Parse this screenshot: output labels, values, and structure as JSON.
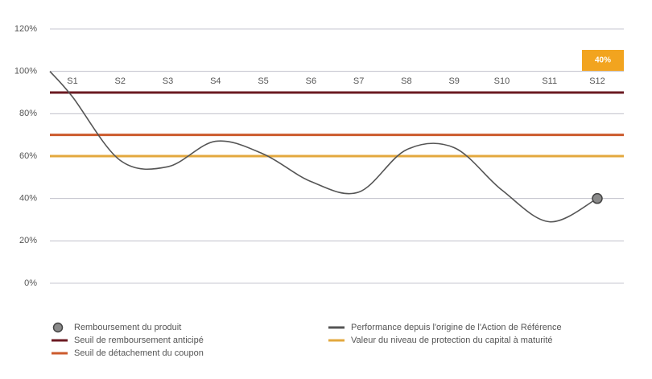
{
  "chart_data": {
    "type": "line",
    "categories": [
      null,
      "S1",
      "S2",
      "S3",
      "S4",
      "S5",
      "S6",
      "S7",
      "S8",
      "S9",
      "S10",
      "S11",
      "S12"
    ],
    "series": [
      {
        "name": "Performance depuis l'origine de l'Action de Référence",
        "type": "line",
        "color": "#555555",
        "values": [
          100,
          88,
          58,
          55,
          67,
          61,
          48,
          43,
          63,
          64,
          44,
          29,
          40
        ]
      },
      {
        "name": "Remboursement du produit",
        "type": "scatter",
        "color": "#8a8a8a",
        "values": [
          null,
          null,
          null,
          null,
          null,
          null,
          null,
          null,
          null,
          null,
          null,
          null,
          40
        ],
        "value_labels": [
          null,
          null,
          null,
          null,
          null,
          null,
          null,
          null,
          null,
          null,
          null,
          null,
          "40%"
        ]
      }
    ],
    "reference_lines": [
      {
        "name": "Seuil de remboursement anticipé",
        "color": "#6b1a22",
        "value": 90
      },
      {
        "name": "Seuil de détachement du coupon",
        "color": "#cc5a2c",
        "value": 70
      },
      {
        "name": "Valeur du niveau de protection du capital à maturité",
        "color": "#e3a83e",
        "value": 60
      }
    ],
    "ylim": [
      0,
      120
    ],
    "yticks": [
      {
        "value": 0,
        "label": "0%"
      },
      {
        "value": 20,
        "label": "20%"
      },
      {
        "value": 40,
        "label": "40%"
      },
      {
        "value": 60,
        "label": "60%"
      },
      {
        "value": 80,
        "label": "80%"
      },
      {
        "value": 100,
        "label": "100%"
      },
      {
        "value": 120,
        "label": "120%"
      }
    ],
    "grid": true
  }
}
